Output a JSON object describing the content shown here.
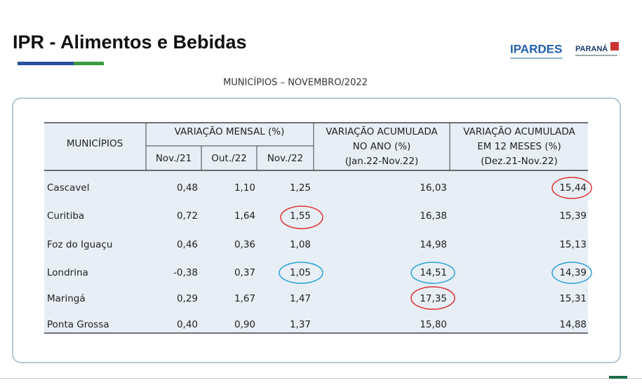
{
  "header": {
    "title": "IPR - Alimentos e Bebidas",
    "logos": [
      "IPARDES",
      "PARANÁ"
    ]
  },
  "subtitle": "MUNICÍPIOS – NOVEMBRO/2022",
  "table": {
    "columns": [
      [
        "MUNICÍPIOS"
      ],
      [
        "VARIAÇÃO MENSAL (%)"
      ],
      [
        "VARIAÇÃO ACUMULADA",
        "NO ANO (%)",
        "(Jan.22-Nov.22)"
      ],
      [
        "VARIAÇÃO ACUMULADA",
        "EM 12 MESES (%)",
        "(Dez.21-Nov.22)"
      ]
    ],
    "subcolumns": [
      "Nov./21",
      "Out./22",
      "Nov./22"
    ],
    "rows": [
      [
        "Cascavel",
        "0,48",
        "1,10",
        "1,25",
        "16,03",
        "15,44"
      ],
      [
        "Curitiba",
        "0,72",
        "1,64",
        "1,55",
        "16,38",
        "15,39"
      ],
      [
        "Foz do Iguaçu",
        "0,46",
        "0,36",
        "1,08",
        "14,98",
        "15,13"
      ],
      [
        "Londrina",
        "-0,38",
        "0,37",
        "1,05",
        "14,51",
        "14,39"
      ],
      [
        "Maringá",
        "0,29",
        "1,67",
        "1,47",
        "17,35",
        "15,31"
      ],
      [
        "Ponta Grossa",
        "0,40",
        "0,90",
        "1,37",
        "15,80",
        "14,88"
      ]
    ]
  }
}
